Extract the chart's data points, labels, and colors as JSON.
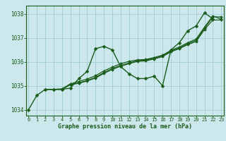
{
  "title": "Graphe pression niveau de la mer (hPa)",
  "background_color": "#cce8ec",
  "grid_color": "#9ecdd4",
  "line_color": "#1a5c1a",
  "xlim": [
    -0.3,
    23.3
  ],
  "ylim": [
    1033.75,
    1038.35
  ],
  "yticks": [
    1034,
    1035,
    1036,
    1037,
    1038
  ],
  "xticks": [
    0,
    1,
    2,
    3,
    4,
    5,
    6,
    7,
    8,
    9,
    10,
    11,
    12,
    13,
    14,
    15,
    16,
    17,
    18,
    19,
    20,
    21,
    22,
    23
  ],
  "series": [
    [
      1034.0,
      1034.6,
      1034.85,
      1034.85,
      1034.85,
      1034.9,
      1035.3,
      1035.6,
      1036.55,
      1036.65,
      1036.5,
      1035.8,
      1035.5,
      1035.3,
      1035.3,
      1035.4,
      1035.0,
      1036.5,
      1036.8,
      1037.3,
      1037.5,
      1038.05,
      1037.8,
      null
    ],
    [
      null,
      null,
      1034.85,
      1034.85,
      1034.85,
      1035.05,
      1035.1,
      1035.2,
      1035.32,
      1035.52,
      1035.68,
      1035.82,
      1035.92,
      1036.02,
      1036.04,
      1036.12,
      1036.22,
      1036.42,
      1036.55,
      1036.72,
      1036.85,
      1037.35,
      1037.75,
      1037.75
    ],
    [
      null,
      null,
      1034.85,
      1034.85,
      1034.85,
      1035.05,
      1035.12,
      1035.22,
      1035.35,
      1035.55,
      1035.72,
      1035.85,
      1035.95,
      1036.05,
      1036.07,
      1036.15,
      1036.25,
      1036.45,
      1036.58,
      1036.75,
      1036.9,
      1037.4,
      1037.88,
      1037.88
    ],
    [
      null,
      null,
      1034.85,
      1034.85,
      1034.87,
      1035.08,
      1035.18,
      1035.28,
      1035.42,
      1035.62,
      1035.78,
      1035.92,
      1036.02,
      1036.08,
      1036.1,
      1036.18,
      1036.28,
      1036.48,
      1036.62,
      1036.8,
      1036.95,
      1037.45,
      1037.92,
      1037.78
    ]
  ]
}
